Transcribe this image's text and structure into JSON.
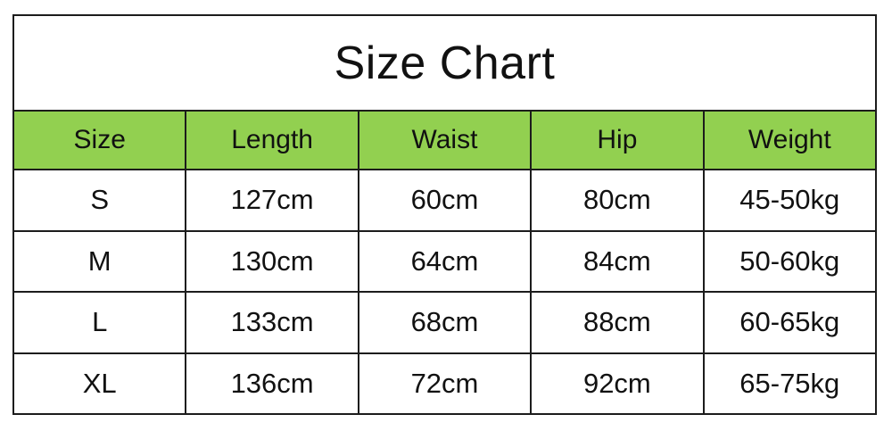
{
  "title": "Size Chart",
  "colors": {
    "header_bg": "#92d050",
    "border": "#1c1c1c",
    "text": "#111111",
    "page_bg": "#ffffff"
  },
  "chart_data": {
    "type": "table",
    "title": "Size Chart",
    "columns": [
      "Size",
      "Length",
      "Waist",
      "Hip",
      "Weight"
    ],
    "rows": [
      [
        "S",
        "127cm",
        "60cm",
        "80cm",
        "45-50kg"
      ],
      [
        "M",
        "130cm",
        "64cm",
        "84cm",
        "50-60kg"
      ],
      [
        "L",
        "133cm",
        "68cm",
        "88cm",
        "60-65kg"
      ],
      [
        "XL",
        "136cm",
        "72cm",
        "92cm",
        "65-75kg"
      ]
    ],
    "layout": {
      "columns_equal_width": true,
      "header_background": "#92d050",
      "grid": true
    }
  }
}
